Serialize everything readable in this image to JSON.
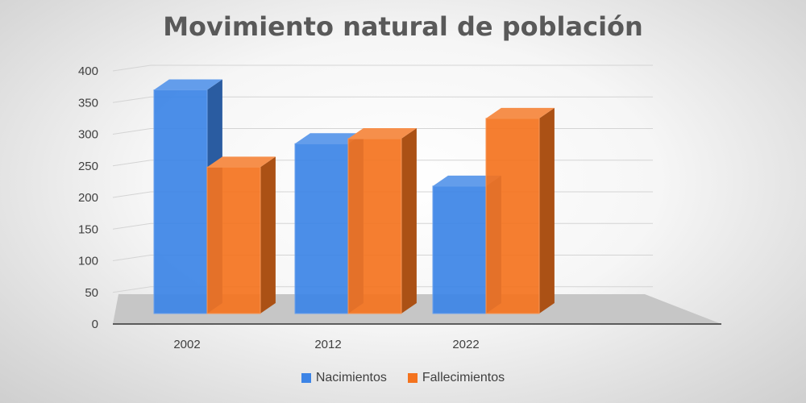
{
  "chart_data": {
    "type": "bar",
    "title": "Movimiento natural de población",
    "categories": [
      "2002",
      "2012",
      "2022"
    ],
    "series": [
      {
        "name": "Nacimientos",
        "values": [
          370,
          285,
          218
        ],
        "color": "#3c84e6"
      },
      {
        "name": "Fallecimientos",
        "values": [
          248,
          293,
          325
        ],
        "color": "#f4731e"
      }
    ],
    "ylim": [
      0,
      400
    ],
    "yticks": [
      "0",
      "50",
      "100",
      "150",
      "200",
      "250",
      "300",
      "350",
      "400"
    ],
    "grid": true,
    "legend_position": "bottom",
    "style": "3d"
  }
}
